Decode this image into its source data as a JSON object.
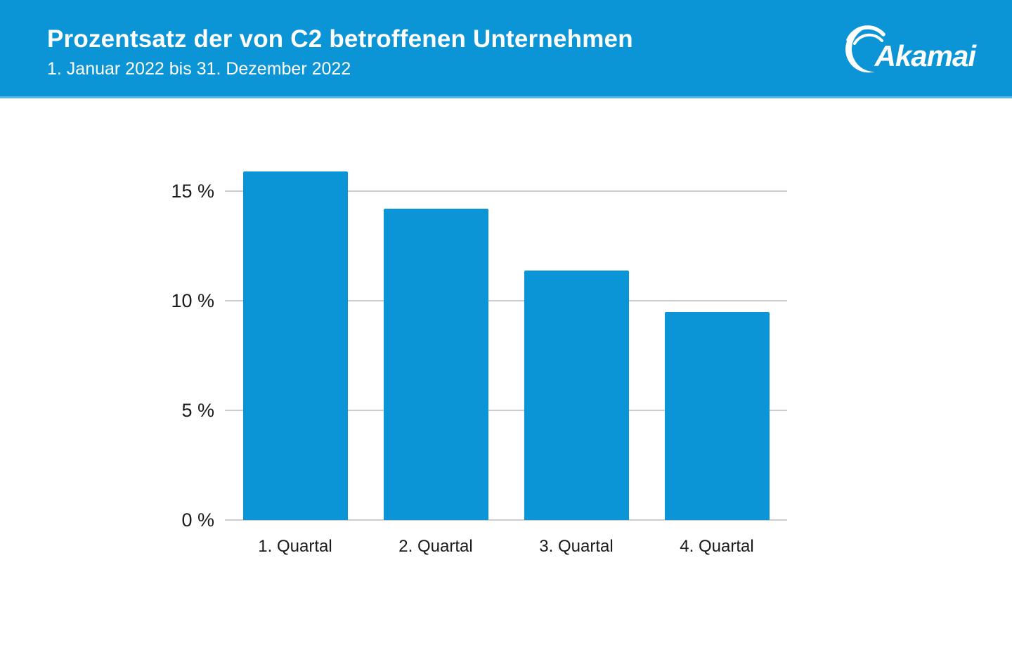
{
  "header": {
    "title": "Prozentsatz der von C2 betroffenen Unternehmen",
    "subtitle": "1. Januar 2022 bis 31. Dezember 2022",
    "background_color": "#0b95d6",
    "logo": {
      "text": "Akamai",
      "icon": "akamai-swoosh-icon",
      "color": "#ffffff"
    }
  },
  "chart_data": {
    "type": "bar",
    "title": "Prozentsatz der von C2 betroffenen Unternehmen",
    "subtitle": "1. Januar 2022 bis 31. Dezember 2022",
    "categories": [
      "1. Quartal",
      "2. Quartal",
      "3. Quartal",
      "4. Quartal"
    ],
    "values": [
      15.9,
      14.2,
      11.4,
      9.5
    ],
    "unit": "%",
    "xlabel": "",
    "ylabel": "",
    "ylim": [
      0,
      17
    ],
    "yticks": [
      0,
      5,
      10,
      15
    ],
    "ytick_labels": [
      "0 %",
      "5 %",
      "10 %",
      "15 %"
    ],
    "grid": true,
    "legend_position": "none",
    "bar_color": "#0b95d6",
    "gridline_color": "#cccccc",
    "label_color": "#1a1a1a"
  }
}
